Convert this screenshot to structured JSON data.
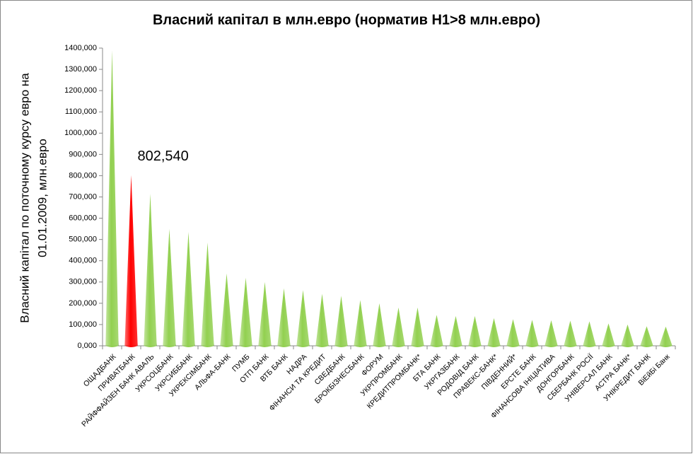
{
  "chart_data": {
    "type": "bar",
    "title": "Власний капітал в млн.евро (норматив Н1>8 млн.евро)",
    "ylabel": [
      "Власний капітал по поточному курсу евро на",
      "01.01.2009, млн.евро"
    ],
    "categories": [
      "ОЩАДБАНК",
      "ПРИВАТБАНК",
      "РАЙФФАЙЗЕН БАНК АВАЛЬ",
      "УКРСОЦБАНК",
      "УКРСИББАНК",
      "УКРЕКСІМБАНК",
      "АЛЬФА-БАНК",
      "ПУМБ",
      "ОТП БАНК",
      "ВТБ БАНК",
      "НАДРА",
      "ФІНАНСИ ТА КРЕДИТ",
      "СВЕДБАНК",
      "БРОКБІЗНЕСБАНК",
      "ФОРУМ",
      "УКРПРОМБАНК",
      "КРЕДИТПРОМБАНК*",
      "БТА БАНК",
      "УКРГАЗБАНК",
      "РОДОВІД БАНК",
      "ПРАВЕКС-БАНК*",
      "ПІВДЕННИЙ*",
      "ЕРСТЕ БАНК",
      "ФІНАНСОВА ІНІЦІАТИВА",
      "ДОНГОРБАНК",
      "СБЕРБАНК РОСІЇ",
      "УНІВЕРСАЛ БАНК",
      "АСТРА БАНК*",
      "УНІКРЕДИТ БАНК",
      "ВіЕйБі Банк"
    ],
    "values": [
      1390000,
      802540,
      715000,
      550000,
      535000,
      485000,
      340000,
      320000,
      300000,
      270000,
      262000,
      245000,
      235000,
      215000,
      200000,
      180000,
      180000,
      145000,
      140000,
      140000,
      130000,
      125000,
      122000,
      120000,
      118000,
      115000,
      105000,
      100000,
      92000,
      90000
    ],
    "value_labels": [
      null,
      "802,540",
      null,
      null,
      null,
      null,
      null,
      null,
      null,
      null,
      null,
      null,
      null,
      null,
      null,
      null,
      null,
      null,
      null,
      null,
      null,
      null,
      null,
      null,
      null,
      null,
      null,
      null,
      null,
      null
    ],
    "colors": [
      "#92d050",
      "#ff0000",
      "#92d050",
      "#92d050",
      "#92d050",
      "#92d050",
      "#92d050",
      "#92d050",
      "#92d050",
      "#92d050",
      "#92d050",
      "#92d050",
      "#92d050",
      "#92d050",
      "#92d050",
      "#92d050",
      "#92d050",
      "#92d050",
      "#92d050",
      "#92d050",
      "#92d050",
      "#92d050",
      "#92d050",
      "#92d050",
      "#92d050",
      "#92d050",
      "#92d050",
      "#92d050",
      "#92d050",
      "#92d050"
    ],
    "ylim": [
      0,
      1400000
    ],
    "yticks": [
      {
        "value": 0,
        "label": "0,000"
      },
      {
        "value": 100000,
        "label": "100,000"
      },
      {
        "value": 200000,
        "label": "200,000"
      },
      {
        "value": 300000,
        "label": "300,000"
      },
      {
        "value": 400000,
        "label": "400,000"
      },
      {
        "value": 500000,
        "label": "500,000"
      },
      {
        "value": 600000,
        "label": "600,000"
      },
      {
        "value": 700000,
        "label": "700,000"
      },
      {
        "value": 800000,
        "label": "800,000"
      },
      {
        "value": 900000,
        "label": "900,000"
      },
      {
        "value": 1000000,
        "label": "1000,000"
      },
      {
        "value": 1100000,
        "label": "1100,000"
      },
      {
        "value": 1200000,
        "label": "1200,000"
      },
      {
        "value": 1300000,
        "label": "1300,000"
      },
      {
        "value": 1400000,
        "label": "1400,000"
      }
    ],
    "grid": false
  }
}
